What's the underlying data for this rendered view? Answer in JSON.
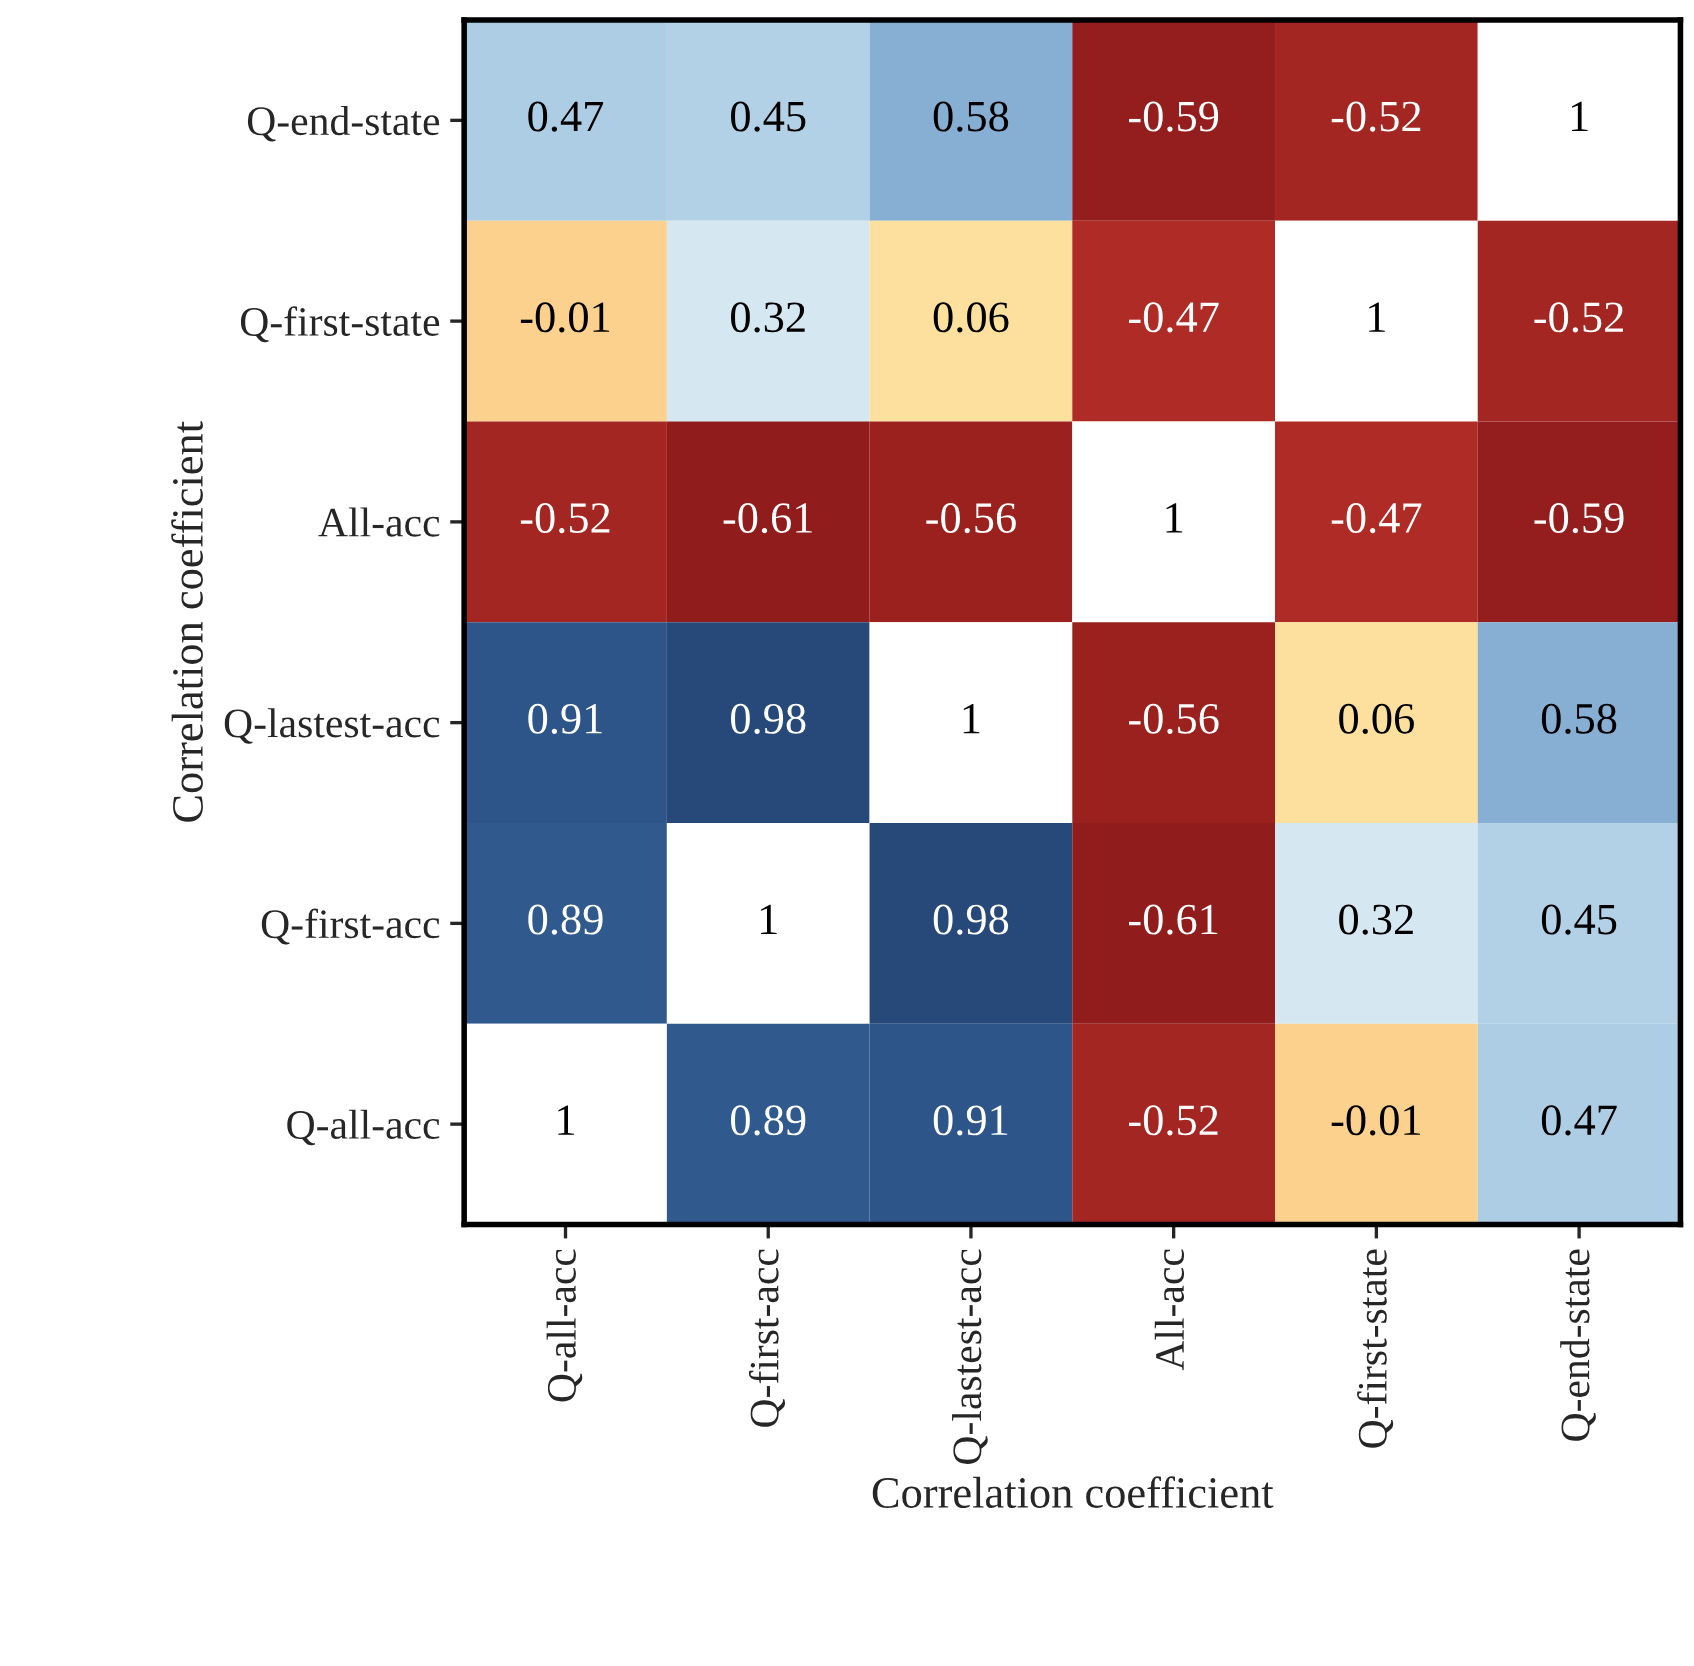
{
  "chart_data": {
    "type": "heatmap",
    "xlabel": "Correlation coefficient",
    "ylabel": "Correlation coefficient",
    "categories": [
      "Q-all-acc",
      "Q-first-acc",
      "Q-lastest-acc",
      "All-acc",
      "Q-first-state",
      "Q-end-state"
    ],
    "y_categories": [
      "Q-end-state",
      "Q-first-state",
      "All-acc",
      "Q-lastest-acc",
      "Q-first-acc",
      "Q-all-acc"
    ],
    "cells": [
      [
        0.47,
        0.45,
        0.58,
        -0.59,
        -0.52,
        null
      ],
      [
        -0.01,
        0.32,
        0.06,
        -0.47,
        null,
        -0.52
      ],
      [
        -0.52,
        -0.61,
        -0.56,
        null,
        -0.47,
        -0.59
      ],
      [
        0.91,
        0.98,
        null,
        -0.56,
        0.06,
        0.58
      ],
      [
        0.89,
        null,
        0.98,
        -0.61,
        0.32,
        0.45
      ],
      [
        null,
        0.89,
        0.91,
        -0.52,
        -0.01,
        0.47
      ]
    ],
    "cell_labels": [
      [
        "0.47",
        "0.45",
        "0.58",
        "-0.59",
        "-0.52",
        "1"
      ],
      [
        "-0.01",
        "0.32",
        "0.06",
        "-0.47",
        "1",
        "-0.52"
      ],
      [
        "-0.52",
        "-0.61",
        "-0.56",
        "1",
        "-0.47",
        "-0.59"
      ],
      [
        "0.91",
        "0.98",
        "1",
        "-0.56",
        "0.06",
        "0.58"
      ],
      [
        "0.89",
        "1",
        "0.98",
        "-0.61",
        "0.32",
        "0.45"
      ],
      [
        "1",
        "0.89",
        "0.91",
        "-0.52",
        "-0.01",
        "0.47"
      ]
    ],
    "colors": [
      "#901c1c",
      "#c4352b",
      "#f9b36f",
      "#fde3a0",
      "#dbebf3",
      "#9dc3e0",
      "#3f72ab",
      "#27497a"
    ]
  }
}
